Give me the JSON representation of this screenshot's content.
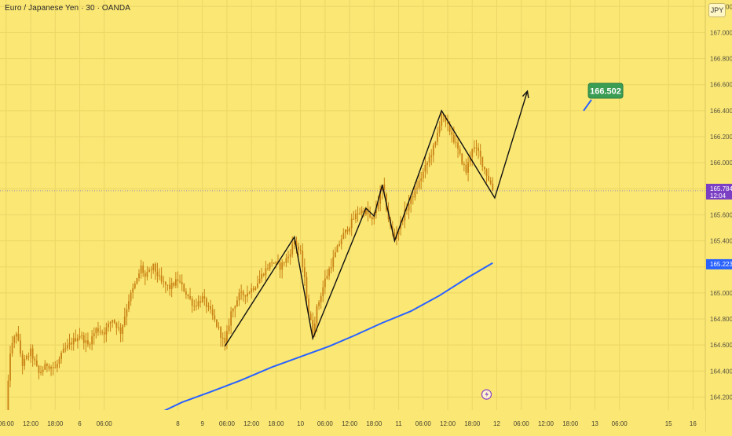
{
  "chart_title": "Euro / Japanese Yen · 30 · OANDA",
  "currency_badge": "JPY",
  "colors": {
    "background": "#fae774",
    "grid": "#ecd666",
    "candle": "#c98214",
    "moving_average": "#2962ff",
    "price_line": "#9a8fb0",
    "current_price_badge": "#7b3fc4",
    "ma_badge": "#2962ff",
    "target_badge": "#3a9d54",
    "pattern_line": "#111111"
  },
  "chart_data": {
    "type": "candlestick",
    "symbol": "EURJPY",
    "interval": "30",
    "ylim": [
      164.1,
      167.25
    ],
    "y_ticks": [
      164.2,
      164.4,
      164.6,
      164.8,
      165.0,
      165.2,
      165.4,
      165.6,
      165.8,
      166.0,
      166.2,
      166.4,
      166.6,
      166.8,
      167.0,
      167.2
    ],
    "y_tick_labels": [
      "164.200",
      "164.400",
      "164.600",
      "164.800",
      "165.000",
      "165.200",
      "165.400",
      "165.600",
      "165.800",
      "166.000",
      "166.200",
      "166.400",
      "166.600",
      "166.800",
      "167.000",
      "167.200"
    ],
    "x_ticks": [
      {
        "t": 0,
        "label": "06:00"
      },
      {
        "t": 12,
        "label": "12:00"
      },
      {
        "t": 24,
        "label": "18:00"
      },
      {
        "t": 36,
        "label": "6"
      },
      {
        "t": 48,
        "label": "06:00"
      },
      {
        "t": 84,
        "label": "8"
      },
      {
        "t": 96,
        "label": "9"
      },
      {
        "t": 108,
        "label": "06:00"
      },
      {
        "t": 120,
        "label": "12:00"
      },
      {
        "t": 132,
        "label": "18:00"
      },
      {
        "t": 144,
        "label": "10"
      },
      {
        "t": 156,
        "label": "06:00"
      },
      {
        "t": 168,
        "label": "12:00"
      },
      {
        "t": 180,
        "label": "18:00"
      },
      {
        "t": 192,
        "label": "11"
      },
      {
        "t": 204,
        "label": "06:00"
      },
      {
        "t": 216,
        "label": "12:00"
      },
      {
        "t": 228,
        "label": "18:00"
      },
      {
        "t": 240,
        "label": "12"
      },
      {
        "t": 252,
        "label": "06:00"
      },
      {
        "t": 264,
        "label": "12:00"
      },
      {
        "t": 276,
        "label": "18:00"
      },
      {
        "t": 288,
        "label": "13"
      },
      {
        "t": 300,
        "label": "06:00"
      },
      {
        "t": 324,
        "label": "15"
      },
      {
        "t": 336,
        "label": "16"
      }
    ],
    "x_range": [
      -3,
      342
    ],
    "last_bar_t": 238,
    "price_anchors": [
      [
        0,
        164.05
      ],
      [
        2,
        164.55
      ],
      [
        5,
        164.7
      ],
      [
        8,
        164.45
      ],
      [
        12,
        164.55
      ],
      [
        16,
        164.38
      ],
      [
        20,
        164.45
      ],
      [
        24,
        164.42
      ],
      [
        28,
        164.55
      ],
      [
        32,
        164.62
      ],
      [
        36,
        164.68
      ],
      [
        40,
        164.6
      ],
      [
        44,
        164.72
      ],
      [
        48,
        164.7
      ],
      [
        52,
        164.8
      ],
      [
        56,
        164.7
      ],
      [
        60,
        164.95
      ],
      [
        64,
        165.1
      ],
      [
        66,
        165.2
      ],
      [
        68,
        165.12
      ],
      [
        72,
        165.2
      ],
      [
        76,
        165.08
      ],
      [
        80,
        165.04
      ],
      [
        84,
        165.1
      ],
      [
        88,
        165.0
      ],
      [
        92,
        164.9
      ],
      [
        96,
        164.96
      ],
      [
        100,
        164.85
      ],
      [
        104,
        164.72
      ],
      [
        107,
        164.6
      ],
      [
        110,
        164.85
      ],
      [
        114,
        164.98
      ],
      [
        118,
        165.0
      ],
      [
        122,
        165.06
      ],
      [
        126,
        165.16
      ],
      [
        130,
        165.24
      ],
      [
        134,
        165.2
      ],
      [
        138,
        165.28
      ],
      [
        141,
        165.4
      ],
      [
        144,
        165.3
      ],
      [
        146,
        165.1
      ],
      [
        148,
        164.85
      ],
      [
        150,
        164.7
      ],
      [
        152,
        164.88
      ],
      [
        156,
        165.1
      ],
      [
        160,
        165.26
      ],
      [
        164,
        165.42
      ],
      [
        168,
        165.52
      ],
      [
        172,
        165.62
      ],
      [
        176,
        165.63
      ],
      [
        179,
        165.55
      ],
      [
        182,
        165.7
      ],
      [
        184,
        165.82
      ],
      [
        186,
        165.65
      ],
      [
        188,
        165.5
      ],
      [
        190,
        165.42
      ],
      [
        194,
        165.58
      ],
      [
        198,
        165.72
      ],
      [
        202,
        165.85
      ],
      [
        206,
        166.0
      ],
      [
        210,
        166.15
      ],
      [
        213,
        166.38
      ],
      [
        215,
        166.3
      ],
      [
        218,
        166.22
      ],
      [
        222,
        166.05
      ],
      [
        225,
        165.93
      ],
      [
        228,
        166.12
      ],
      [
        231,
        166.08
      ],
      [
        234,
        165.95
      ],
      [
        238,
        165.8
      ]
    ],
    "moving_average": [
      [
        74,
        164.07
      ],
      [
        86,
        164.16
      ],
      [
        100,
        164.24
      ],
      [
        115,
        164.33
      ],
      [
        130,
        164.43
      ],
      [
        144,
        164.51
      ],
      [
        158,
        164.59
      ],
      [
        170,
        164.67
      ],
      [
        184,
        164.77
      ],
      [
        198,
        164.86
      ],
      [
        212,
        164.98
      ],
      [
        226,
        165.12
      ],
      [
        238,
        165.23
      ]
    ],
    "current_price": 165.784,
    "current_price_label": "165.784",
    "countdown_label": "12:04",
    "ma_value": 165.223,
    "ma_value_label": "165.223",
    "target_price": 166.502,
    "target_label": "166.502",
    "zigzag_pattern": [
      [
        107,
        164.59
      ],
      [
        141,
        165.43
      ],
      [
        150,
        164.65
      ],
      [
        176,
        165.65
      ],
      [
        180,
        165.59
      ],
      [
        184,
        165.83
      ],
      [
        190,
        165.4
      ],
      [
        213,
        166.4
      ],
      [
        239,
        165.73
      ],
      [
        255,
        166.55
      ]
    ],
    "projection_arrow": {
      "from": [
        239,
        165.73
      ],
      "to": [
        255,
        166.55
      ]
    },
    "target_pointer": {
      "t": 284,
      "y": 166.52
    },
    "event_marker": {
      "t": 235,
      "y": 164.22
    }
  }
}
